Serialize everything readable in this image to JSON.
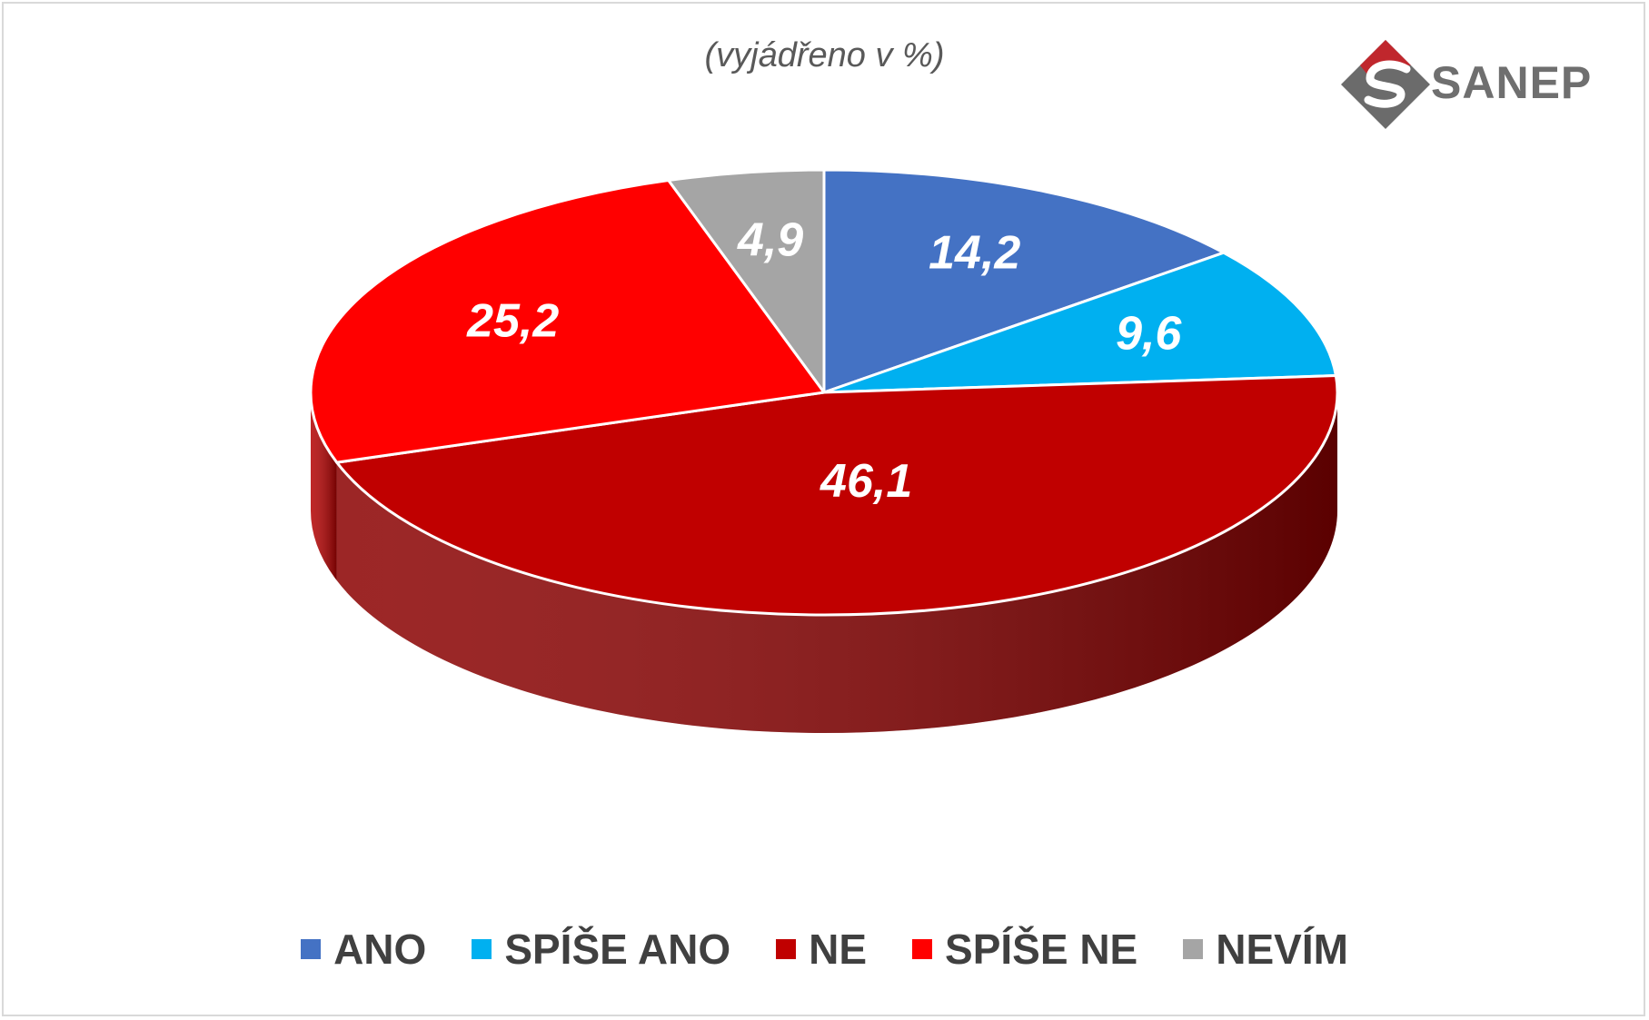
{
  "subtitle": "(vyjádřeno v %)",
  "logo": {
    "text": "SANEP"
  },
  "chart_data": {
    "type": "pie",
    "categories": [
      "ANO",
      "SPÍŠE ANO",
      "NE",
      "SPÍŠE NE",
      "NEVÍM"
    ],
    "values": [
      14.2,
      9.6,
      46.1,
      25.2,
      4.9
    ],
    "labels": [
      "14,2",
      "9,6",
      "46,1",
      "25,2",
      "4,9"
    ],
    "colors": [
      "#4472c4",
      "#00b0f0",
      "#c00000",
      "#ff0000",
      "#a5a5a5"
    ],
    "side_colors": [
      "#2f5597",
      "#0089bd",
      "#8b0000",
      "#b30000",
      "#7f7f7f"
    ],
    "legend_position": "bottom",
    "style": "3d"
  }
}
